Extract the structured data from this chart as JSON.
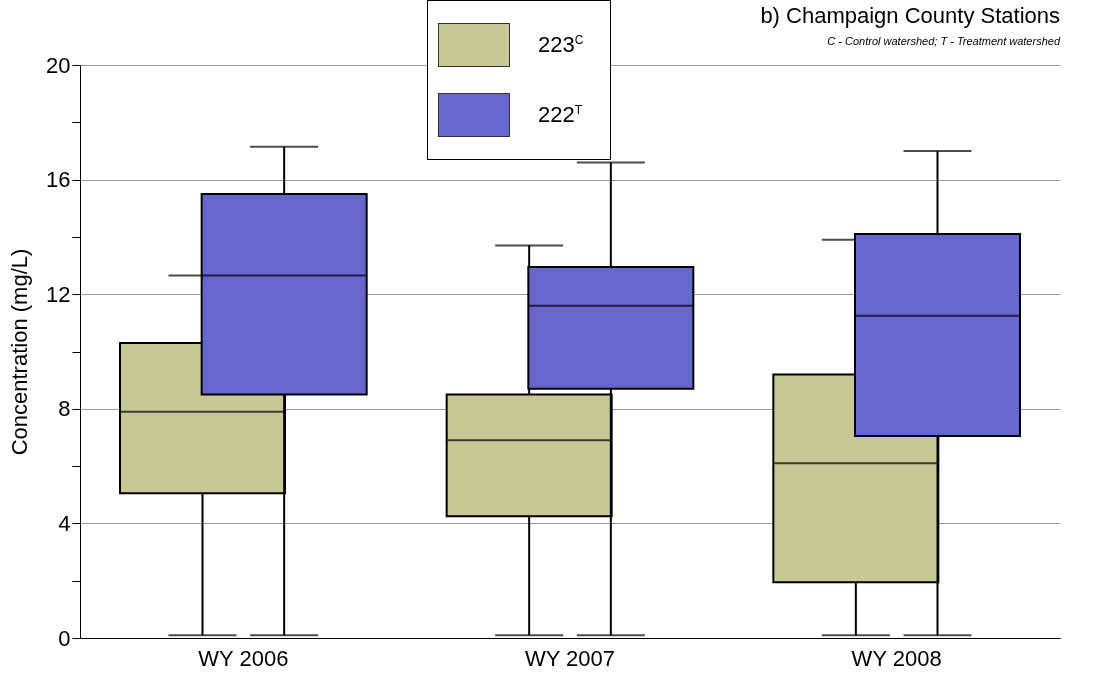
{
  "chart_data": {
    "type": "box",
    "title": "b) Champaign County Stations",
    "subtitle": "C - Control watershed; T - Treatment watershed",
    "ylabel": "Concentration (mg/L)",
    "categories": [
      "WY 2006",
      "WY 2007",
      "WY 2008"
    ],
    "ylim": [
      0,
      20
    ],
    "yticks": [
      0,
      {
        "value": 2,
        "label": null
      },
      4,
      {
        "value": 6,
        "label": null
      },
      8,
      {
        "value": 10,
        "label": null
      },
      12,
      {
        "value": 14,
        "label": null
      },
      16,
      {
        "value": 18,
        "label": null
      },
      20
    ],
    "grid": "y",
    "legend": "top",
    "series": [
      {
        "name": "223$^{C}$",
        "color": "#c8c896",
        "boxes": [
          {
            "low": 0.1,
            "q1": 5.05,
            "median": 7.9,
            "q3": 10.3,
            "high": 12.65
          },
          {
            "low": 0.1,
            "q1": 4.25,
            "median": 6.9,
            "q3": 8.5,
            "high": 13.7
          },
          {
            "low": 0.1,
            "q1": 1.95,
            "median": 6.1,
            "q3": 9.2,
            "high": 13.9
          }
        ]
      },
      {
        "name": "222$^{T}$",
        "color": "#6666cc",
        "boxes": [
          {
            "low": 0.1,
            "q1": 8.5,
            "median": 12.65,
            "q3": 15.5,
            "high": 17.15
          },
          {
            "low": 0.1,
            "q1": 8.7,
            "median": 11.6,
            "q3": 12.95,
            "high": 16.6
          },
          {
            "low": 0.1,
            "q1": 7.05,
            "median": 11.25,
            "q3": 14.1,
            "high": 17.0
          }
        ]
      }
    ]
  }
}
